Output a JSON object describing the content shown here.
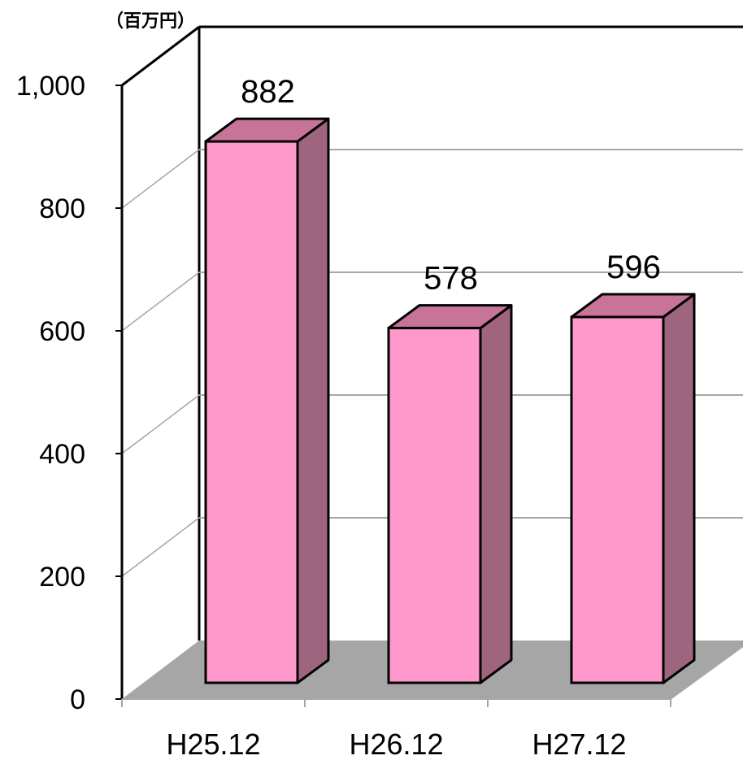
{
  "chart_data": {
    "type": "bar",
    "categories": [
      "H25.12",
      "H26.12",
      "H27.12"
    ],
    "values": [
      882,
      578,
      596
    ],
    "data_labels": [
      "882",
      "578",
      "596"
    ],
    "unit_label": "（百万円）",
    "y_ticks": [
      0,
      200,
      400,
      600,
      800,
      1000
    ],
    "y_tick_labels": [
      "0",
      "200",
      "400",
      "600",
      "800",
      "1,000"
    ],
    "ylim": [
      0,
      1000
    ],
    "grid": true,
    "legend": "none",
    "three_d": true
  },
  "colors": {
    "bar_front": "#ff99cc",
    "bar_top": "#c87499",
    "bar_side": "#a0657e",
    "floor": "#a6a6a6",
    "gridline": "#a6a6a6",
    "axis": "#000000"
  }
}
